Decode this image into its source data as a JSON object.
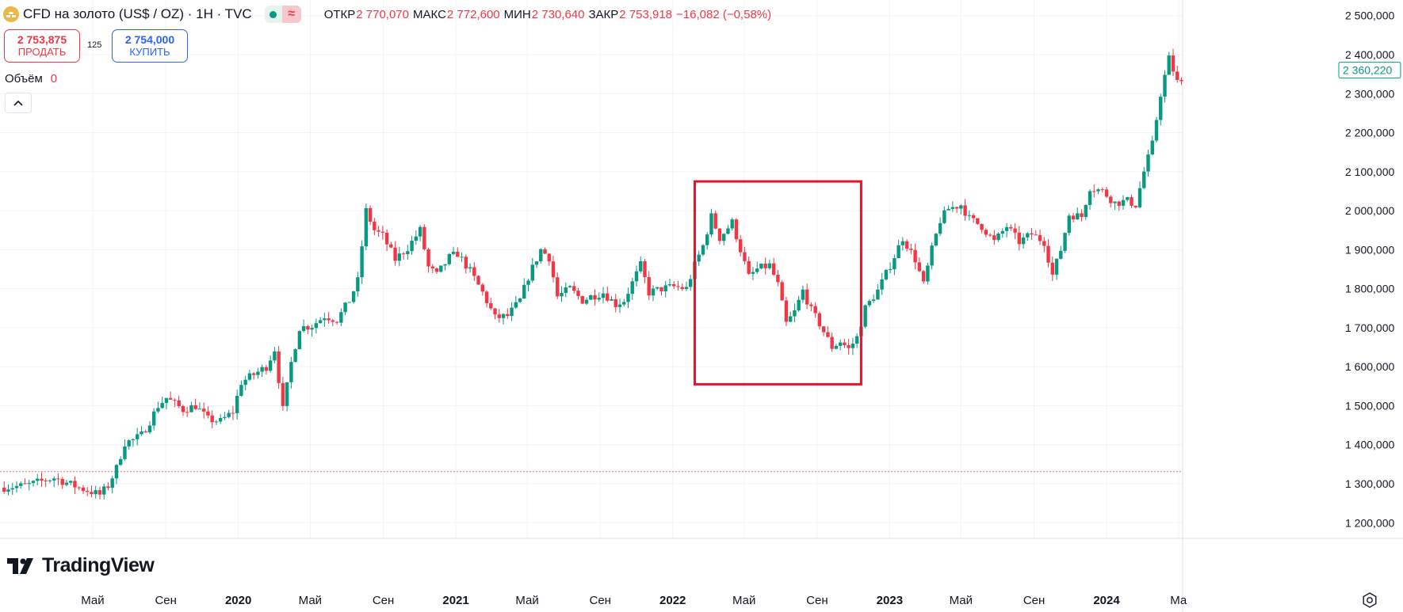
{
  "header": {
    "symbol_title": "CFD на золото (US$ / OZ) · 1H · TVC",
    "open_label": "ОТКР",
    "open_value": "2 770,070",
    "high_label": "МАКС",
    "high_value": "2 772,600",
    "low_label": "МИН",
    "low_value": "2 730,640",
    "close_label": "ЗАКР",
    "close_value": "2 753,918",
    "change": "−16,082 (−0,58%)",
    "wave_glyph": "≈"
  },
  "trade": {
    "sell_price": "2 753,875",
    "sell_label": "ПРОДАТЬ",
    "spread": "125",
    "buy_price": "2 754,000",
    "buy_label": "КУПИТЬ"
  },
  "volume": {
    "label": "Объём",
    "value": "0"
  },
  "logo_text": "TradingView",
  "colors": {
    "up": "#089981",
    "down": "#f23645",
    "grid": "#f0f3fa",
    "highlight": "#e8102a",
    "text": "#131722"
  },
  "chart_data": {
    "type": "candlestick",
    "y_axis": {
      "ticks": [
        1200000,
        1300000,
        1400000,
        1500000,
        1600000,
        1700000,
        1800000,
        1900000,
        2000000,
        2100000,
        2200000,
        2300000,
        2400000,
        2500000
      ],
      "tick_labels": [
        "1 200,000",
        "1 300,000",
        "1 400,000",
        "1 500,000",
        "1 600,000",
        "1 700,000",
        "1 800,000",
        "1 900,000",
        "2 000,000",
        "2 100,000",
        "2 200,000",
        "2 300,000",
        "2 400,000",
        "2 500,000"
      ],
      "range": [
        1160000,
        2540000
      ]
    },
    "x_axis": {
      "range": [
        "2018-11-26",
        "2024-05-08"
      ],
      "ticks": [
        {
          "date": "2019-05-01",
          "label": "Май",
          "bold": false
        },
        {
          "date": "2019-09-01",
          "label": "Сен",
          "bold": false
        },
        {
          "date": "2020-01-01",
          "label": "2020",
          "bold": true
        },
        {
          "date": "2020-05-01",
          "label": "Май",
          "bold": false
        },
        {
          "date": "2020-09-01",
          "label": "Сен",
          "bold": false
        },
        {
          "date": "2021-01-01",
          "label": "2021",
          "bold": true
        },
        {
          "date": "2021-05-01",
          "label": "Май",
          "bold": false
        },
        {
          "date": "2021-09-01",
          "label": "Сен",
          "bold": false
        },
        {
          "date": "2022-01-01",
          "label": "2022",
          "bold": true
        },
        {
          "date": "2022-05-01",
          "label": "Май",
          "bold": false
        },
        {
          "date": "2022-09-01",
          "label": "Сен",
          "bold": false
        },
        {
          "date": "2023-01-01",
          "label": "2023",
          "bold": true
        },
        {
          "date": "2023-05-01",
          "label": "Май",
          "bold": false
        },
        {
          "date": "2023-09-01",
          "label": "Сен",
          "bold": false
        },
        {
          "date": "2024-01-01",
          "label": "2024",
          "bold": true
        },
        {
          "date": "2024-05-01",
          "label": "Ма",
          "bold": false
        }
      ]
    },
    "last_price": {
      "value": 2360220,
      "label": "2 360,220"
    },
    "reference_line": 1331000,
    "highlight_box": {
      "x": [
        "2022-02-07",
        "2022-11-14"
      ],
      "y": [
        1555000,
        2075000
      ]
    },
    "anchors": [
      [
        "2018-11-26",
        1290000
      ],
      [
        "2019-01-07",
        1295000
      ],
      [
        "2019-02-25",
        1315000
      ],
      [
        "2019-04-08",
        1290000
      ],
      [
        "2019-05-13",
        1272000
      ],
      [
        "2019-05-27",
        1295000
      ],
      [
        "2019-06-10",
        1340000
      ],
      [
        "2019-06-24",
        1405000
      ],
      [
        "2019-07-08",
        1412000
      ],
      [
        "2019-07-22",
        1425000
      ],
      [
        "2019-08-05",
        1460000
      ],
      [
        "2019-08-19",
        1500000
      ],
      [
        "2019-09-02",
        1520000
      ],
      [
        "2019-09-16",
        1505000
      ],
      [
        "2019-09-30",
        1490000
      ],
      [
        "2019-10-21",
        1500000
      ],
      [
        "2019-11-11",
        1465000
      ],
      [
        "2019-12-02",
        1460000
      ],
      [
        "2019-12-23",
        1485000
      ],
      [
        "2020-01-06",
        1560000
      ],
      [
        "2020-01-27",
        1580000
      ],
      [
        "2020-02-17",
        1600000
      ],
      [
        "2020-03-02",
        1645000
      ],
      [
        "2020-03-16",
        1490000
      ],
      [
        "2020-03-30",
        1610000
      ],
      [
        "2020-04-13",
        1700000
      ],
      [
        "2020-05-04",
        1705000
      ],
      [
        "2020-05-25",
        1730000
      ],
      [
        "2020-06-15",
        1720000
      ],
      [
        "2020-07-06",
        1770000
      ],
      [
        "2020-07-20",
        1820000
      ],
      [
        "2020-08-03",
        2000000
      ],
      [
        "2020-08-17",
        1950000
      ],
      [
        "2020-08-31",
        1935000
      ],
      [
        "2020-09-21",
        1875000
      ],
      [
        "2020-10-12",
        1905000
      ],
      [
        "2020-11-02",
        1950000
      ],
      [
        "2020-11-16",
        1855000
      ],
      [
        "2020-11-30",
        1835000
      ],
      [
        "2020-12-21",
        1880000
      ],
      [
        "2021-01-04",
        1890000
      ],
      [
        "2021-01-25",
        1845000
      ],
      [
        "2021-02-15",
        1790000
      ],
      [
        "2021-03-08",
        1725000
      ],
      [
        "2021-03-29",
        1730000
      ],
      [
        "2021-04-19",
        1770000
      ],
      [
        "2021-05-03",
        1830000
      ],
      [
        "2021-05-24",
        1900000
      ],
      [
        "2021-06-07",
        1880000
      ],
      [
        "2021-06-21",
        1780000
      ],
      [
        "2021-07-12",
        1800000
      ],
      [
        "2021-08-02",
        1770000
      ],
      [
        "2021-08-16",
        1780000
      ],
      [
        "2021-09-06",
        1790000
      ],
      [
        "2021-09-27",
        1760000
      ],
      [
        "2021-10-11",
        1770000
      ],
      [
        "2021-11-08",
        1860000
      ],
      [
        "2021-11-22",
        1790000
      ],
      [
        "2021-12-13",
        1800000
      ],
      [
        "2022-01-03",
        1805000
      ],
      [
        "2022-01-24",
        1800000
      ],
      [
        "2022-02-07",
        1860000
      ],
      [
        "2022-02-21",
        1910000
      ],
      [
        "2022-03-07",
        1985000
      ],
      [
        "2022-03-21",
        1930000
      ],
      [
        "2022-04-11",
        1970000
      ],
      [
        "2022-04-25",
        1900000
      ],
      [
        "2022-05-09",
        1830000
      ],
      [
        "2022-05-23",
        1850000
      ],
      [
        "2022-06-13",
        1860000
      ],
      [
        "2022-06-27",
        1810000
      ],
      [
        "2022-07-11",
        1710000
      ],
      [
        "2022-07-25",
        1740000
      ],
      [
        "2022-08-08",
        1795000
      ],
      [
        "2022-08-22",
        1745000
      ],
      [
        "2022-09-05",
        1710000
      ],
      [
        "2022-09-26",
        1650000
      ],
      [
        "2022-10-10",
        1665000
      ],
      [
        "2022-10-24",
        1645000
      ],
      [
        "2022-11-07",
        1675000
      ],
      [
        "2022-11-21",
        1750000
      ],
      [
        "2022-12-12",
        1795000
      ],
      [
        "2023-01-02",
        1860000
      ],
      [
        "2023-01-23",
        1930000
      ],
      [
        "2023-02-13",
        1875000
      ],
      [
        "2023-02-27",
        1810000
      ],
      [
        "2023-03-13",
        1900000
      ],
      [
        "2023-03-27",
        1975000
      ],
      [
        "2023-04-10",
        2005000
      ],
      [
        "2023-05-01",
        2015000
      ],
      [
        "2023-05-15",
        1980000
      ],
      [
        "2023-06-05",
        1960000
      ],
      [
        "2023-06-26",
        1920000
      ],
      [
        "2023-07-17",
        1960000
      ],
      [
        "2023-08-07",
        1920000
      ],
      [
        "2023-08-28",
        1940000
      ],
      [
        "2023-09-18",
        1920000
      ],
      [
        "2023-10-02",
        1835000
      ],
      [
        "2023-10-16",
        1900000
      ],
      [
        "2023-10-30",
        1990000
      ],
      [
        "2023-11-20",
        1985000
      ],
      [
        "2023-12-04",
        2060000
      ],
      [
        "2023-12-25",
        2050000
      ],
      [
        "2024-01-15",
        2020000
      ],
      [
        "2024-02-05",
        2025000
      ],
      [
        "2024-02-19",
        2015000
      ],
      [
        "2024-03-04",
        2100000
      ],
      [
        "2024-03-18",
        2170000
      ],
      [
        "2024-04-01",
        2300000
      ],
      [
        "2024-04-15",
        2390000
      ],
      [
        "2024-04-29",
        2330000
      ],
      [
        "2024-05-08",
        2325000
      ]
    ]
  }
}
